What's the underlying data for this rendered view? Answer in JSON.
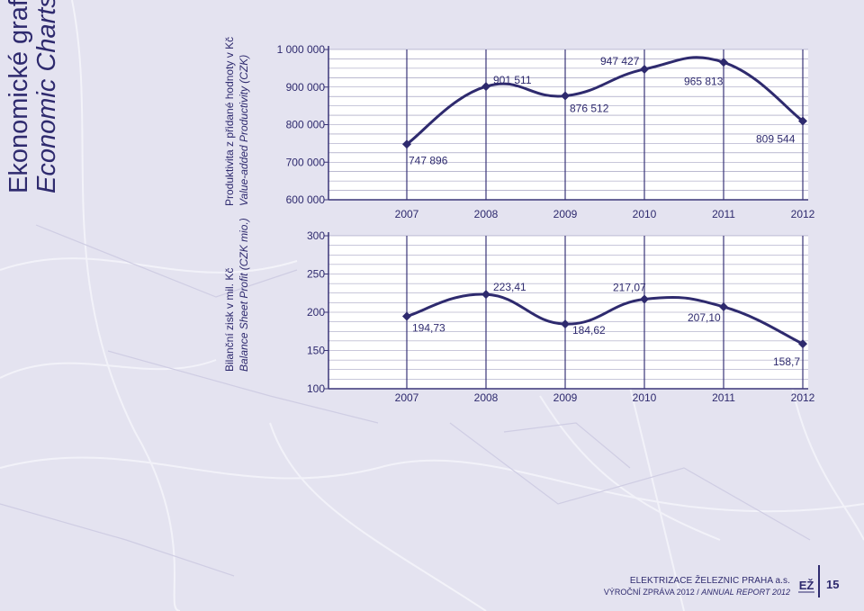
{
  "page": {
    "title_cz": "Ekonomické grafy",
    "title_en": "Economic Charts",
    "company": "ELEKTRIZACE ŽELEZNIC PRAHA a.s.",
    "report_cz": "VÝROČNÍ ZPRÁVA 2012 /",
    "report_en": "ANNUAL REPORT 2012",
    "page_number": "15",
    "logo_text": "EŽ"
  },
  "colors": {
    "line": "#2e2a6e",
    "grid": "#3a3578",
    "panel": "#ffffff",
    "text": "#2e2a6e"
  },
  "chart_data": [
    {
      "type": "line",
      "ylabel_cz": "Produktivita z přidané hodnoty v Kč",
      "ylabel_en": "Value-added Productivity (CZK)",
      "categories": [
        "2007",
        "2008",
        "2009",
        "2010",
        "2011",
        "2012"
      ],
      "values": [
        747896,
        901511,
        876512,
        947427,
        965813,
        809544
      ],
      "data_labels": [
        "747 896",
        "901 511",
        "876 512",
        "947 427",
        "965 813",
        "809 544"
      ],
      "ylim": [
        600000,
        1000000
      ],
      "yticks": [
        600000,
        700000,
        800000,
        900000,
        1000000
      ],
      "ytick_labels": [
        "600 000",
        "700 000",
        "800 000",
        "900 000",
        "1 000 000"
      ],
      "grid": true
    },
    {
      "type": "line",
      "ylabel_cz": "Bilanční zisk v mil. Kč",
      "ylabel_en": "Balance Sheet Profit (CZK mio.)",
      "categories": [
        "2007",
        "2008",
        "2009",
        "2010",
        "2011",
        "2012"
      ],
      "values": [
        194.73,
        223.41,
        184.62,
        217.07,
        207.1,
        158.7
      ],
      "data_labels": [
        "194,73",
        "223,41",
        "184,62",
        "217,07",
        "207,10",
        "158,7"
      ],
      "ylim": [
        100,
        300
      ],
      "yticks": [
        100,
        150,
        200,
        250,
        300
      ],
      "ytick_labels": [
        "100",
        "150",
        "200",
        "250",
        "300"
      ],
      "grid": true
    }
  ]
}
